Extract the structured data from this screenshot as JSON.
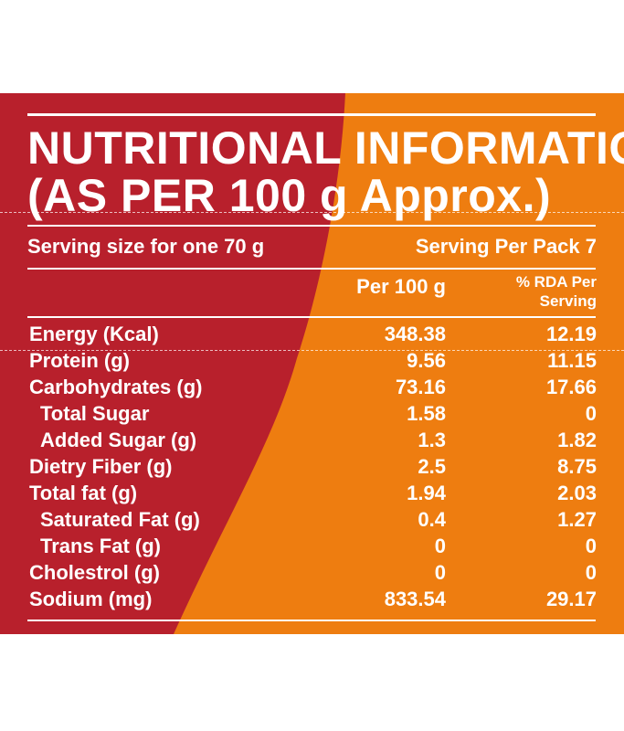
{
  "title_line1": "NUTRITIONAL INFORMATION",
  "title_line2": "(AS PER 100 g Approx.)",
  "serving_size": "Serving size for one 70 g",
  "serving_per_pack": "Serving Per Pack 7",
  "col_per100": "Per 100 g",
  "col_rda_line1": "% RDA Per",
  "col_rda_line2": "Serving",
  "colors": {
    "left_red": "#b8202c",
    "right_orange": "#ee7d10",
    "text": "#ffffff"
  },
  "rows": [
    {
      "label": "Energy (Kcal)",
      "per100": "348.38",
      "rda": "12.19"
    },
    {
      "label": "Protein (g)",
      "per100": "9.56",
      "rda": "11.15"
    },
    {
      "label": "Carbohydrates (g)",
      "per100": "73.16",
      "rda": "17.66"
    },
    {
      "label": "Total Sugar",
      "per100": "1.58",
      "rda": "0"
    },
    {
      "label": "Added Sugar (g)",
      "per100": "1.3",
      "rda": "1.82"
    },
    {
      "label": "Dietry Fiber (g)",
      "per100": "2.5",
      "rda": "8.75"
    },
    {
      "label": "Total fat (g)",
      "per100": "1.94",
      "rda": "2.03"
    },
    {
      "label": "Saturated Fat (g)",
      "per100": "0.4",
      "rda": "1.27"
    },
    {
      "label": "Trans Fat (g)",
      "per100": "0",
      "rda": "0"
    },
    {
      "label": "Cholestrol (g)",
      "per100": "0",
      "rda": "0"
    },
    {
      "label": "Sodium (mg)",
      "per100": "833.54",
      "rda": "29.17"
    }
  ]
}
